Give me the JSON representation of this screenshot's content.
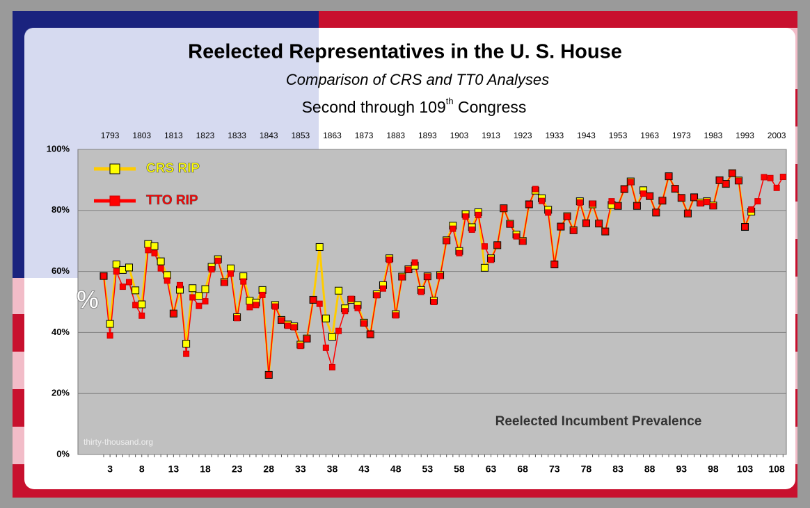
{
  "chart_data": {
    "type": "line",
    "title": "Reelected Representatives in the U. S. House",
    "subtitle": "Comparison of CRS and TT0 Analyses",
    "subtitle2": {
      "before": "Second through 109",
      "sup": "th",
      "after": " Congress"
    },
    "y_label": "%",
    "annotation": "Reelected Incumbent Prevalence",
    "watermark": "thirty-thousand.org",
    "categories": [
      null,
      3,
      null,
      null,
      null,
      null,
      8,
      null,
      null,
      null,
      null,
      13,
      null,
      null,
      null,
      null,
      18,
      null,
      null,
      null,
      null,
      23,
      null,
      null,
      null,
      null,
      28,
      null,
      null,
      null,
      null,
      33,
      null,
      null,
      null,
      null,
      38,
      null,
      null,
      null,
      null,
      43,
      null,
      null,
      null,
      null,
      48,
      null,
      null,
      null,
      null,
      53,
      null,
      null,
      null,
      null,
      58,
      null,
      null,
      null,
      null,
      63,
      null,
      null,
      null,
      null,
      68,
      null,
      null,
      null,
      null,
      73,
      null,
      null,
      null,
      null,
      78,
      null,
      null,
      null,
      null,
      83,
      null,
      null,
      null,
      null,
      88,
      null,
      null,
      null,
      null,
      93,
      null,
      null,
      null,
      null,
      98,
      null,
      null,
      null,
      null,
      103,
      null,
      null,
      null,
      null,
      108,
      null
    ],
    "top_labels": [
      null,
      1793,
      null,
      null,
      null,
      null,
      1803,
      null,
      null,
      null,
      null,
      1813,
      null,
      null,
      null,
      null,
      1823,
      null,
      null,
      null,
      null,
      1833,
      null,
      null,
      null,
      null,
      1843,
      null,
      null,
      null,
      null,
      1853,
      null,
      null,
      null,
      null,
      1863,
      null,
      null,
      null,
      null,
      1873,
      null,
      null,
      null,
      null,
      1883,
      null,
      null,
      null,
      null,
      1893,
      null,
      null,
      null,
      null,
      1903,
      null,
      null,
      null,
      null,
      1913,
      null,
      null,
      null,
      null,
      1923,
      null,
      null,
      null,
      null,
      1933,
      null,
      null,
      null,
      null,
      1943,
      null,
      null,
      null,
      null,
      1953,
      null,
      null,
      null,
      null,
      1963,
      null,
      null,
      null,
      null,
      1973,
      null,
      null,
      null,
      null,
      1983,
      null,
      null,
      null,
      null,
      1993,
      null,
      null,
      null,
      null,
      2003,
      null
    ],
    "series": [
      {
        "name": "CRS RIP",
        "color": "#ffff00",
        "line_color": "#ffcc00",
        "values": [
          58.5,
          42.8,
          62.3,
          60.5,
          61.3,
          53.8,
          49.2,
          69,
          68.3,
          63.3,
          58.8,
          46.2,
          54,
          36.3,
          54.5,
          52,
          54.2,
          61.5,
          64,
          56.5,
          61,
          45,
          58.4,
          50.4,
          49.8,
          53.9,
          26.1,
          49,
          44.1,
          42.6,
          42,
          36,
          38,
          50.7,
          68,
          44.6,
          38.6,
          53.7,
          47.9,
          50.7,
          49,
          43.2,
          39.4,
          52.5,
          55.5,
          64.3,
          46,
          58.3,
          60.7,
          61.9,
          53.9,
          58.4,
          50.4,
          58.8,
          70.2,
          75,
          66.7,
          78.8,
          74.5,
          79.4,
          61.2,
          64.3,
          68.6,
          80.7,
          75.6,
          72.1,
          70,
          82,
          86.5,
          84,
          80.2,
          62.3,
          74.7,
          78.1,
          73.5,
          83,
          75.8,
          82,
          75.7,
          73.1,
          81.8,
          81.5,
          87,
          89.5,
          81.5,
          86.6,
          84.7,
          79.3,
          83.2,
          91.2,
          87.1,
          84.1,
          79,
          84.3,
          82.6,
          83,
          81.6,
          89.9,
          88.7,
          92.2,
          89.8,
          74.6,
          79.6,
          null,
          null,
          null,
          null,
          null
        ]
      },
      {
        "name": "TTO RIP",
        "color": "#ff0000",
        "line_color": "#ff0000",
        "values": [
          58.5,
          39,
          60,
          55,
          56.5,
          49,
          45.5,
          67,
          66,
          61,
          57,
          46.2,
          55.5,
          33,
          51.5,
          48.7,
          50.2,
          60.7,
          63.5,
          56.3,
          59.3,
          44.7,
          56.7,
          48.3,
          49,
          52.3,
          26.1,
          48.5,
          44,
          42.2,
          41.7,
          35.6,
          37.9,
          50.7,
          49.4,
          35,
          28.6,
          40.5,
          47,
          51,
          48,
          43,
          39.4,
          52.2,
          54.4,
          63.8,
          45.6,
          58.1,
          60.6,
          62.9,
          53.3,
          58.3,
          50,
          58.5,
          70,
          74,
          66,
          78,
          73.7,
          78.5,
          68.2,
          63.8,
          68.6,
          80.7,
          75.5,
          71.5,
          69.8,
          82,
          87,
          83.1,
          79.3,
          62.3,
          74.7,
          78,
          73.4,
          82.6,
          75.8,
          82.2,
          75.7,
          73.1,
          83,
          81.5,
          87,
          89.3,
          81.5,
          85.5,
          84.7,
          79.3,
          83.2,
          91.2,
          87.1,
          84.1,
          79,
          84.3,
          82.3,
          82.8,
          81.4,
          89.9,
          88.7,
          92.2,
          89.7,
          74.6,
          80.3,
          83,
          90.9,
          90.6,
          87.4,
          91
        ]
      }
    ],
    "ylim": [
      0,
      100
    ],
    "yticks": [
      {
        "value": 0,
        "label": "0%"
      },
      {
        "value": 20,
        "label": "20%"
      },
      {
        "value": 40,
        "label": "40%"
      },
      {
        "value": 60,
        "label": "60%"
      },
      {
        "value": 80,
        "label": "80%"
      },
      {
        "value": 100,
        "label": "100%"
      }
    ],
    "grid": true
  }
}
